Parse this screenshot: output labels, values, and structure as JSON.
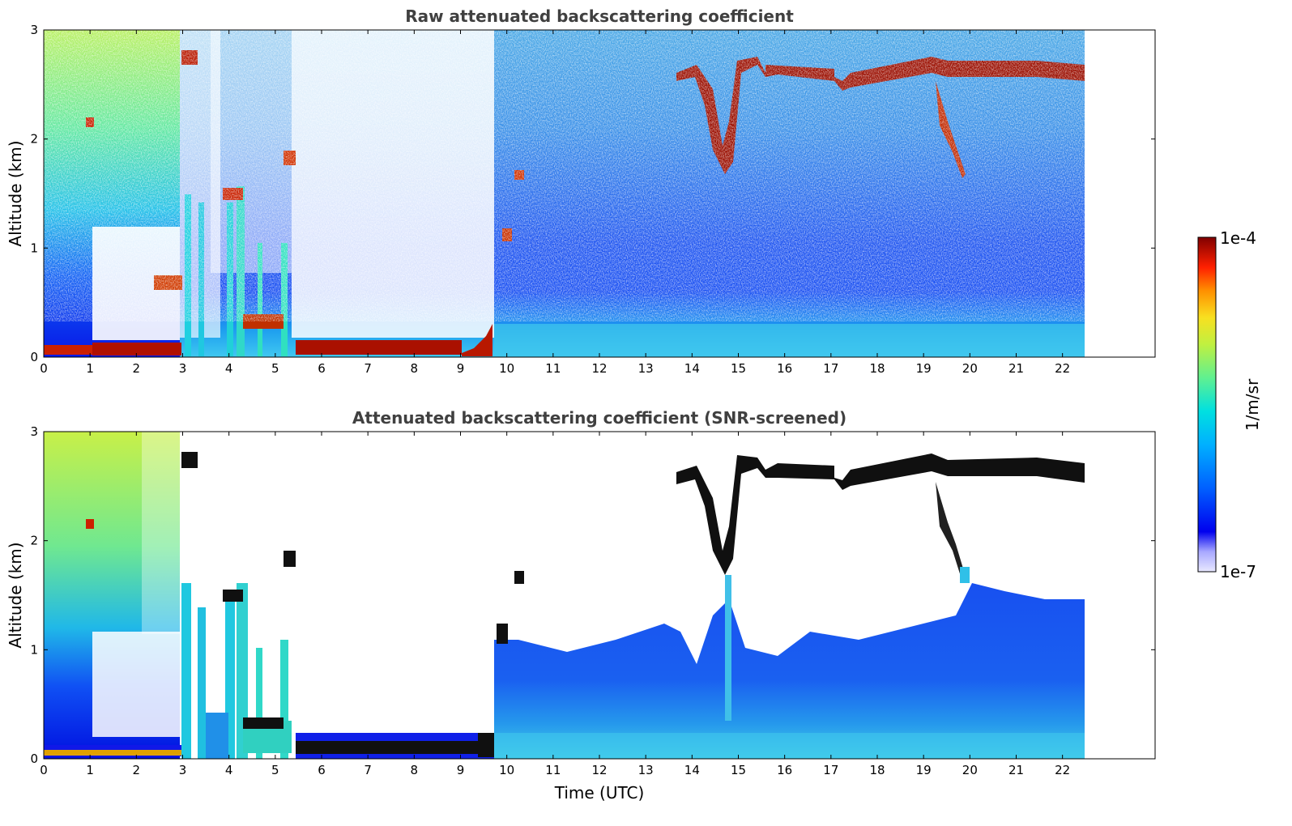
{
  "chart_data": [
    {
      "type": "heatmap",
      "title": "Raw attenuated backscattering coefficient",
      "xlabel": "",
      "ylabel": "Altitude (km)",
      "xlim": [
        0,
        24
      ],
      "ylim": [
        0,
        3
      ],
      "xticks": [
        0,
        1,
        2,
        3,
        4,
        5,
        6,
        7,
        8,
        9,
        10,
        11,
        12,
        13,
        14,
        15,
        16,
        17,
        18,
        19,
        20,
        21,
        22
      ],
      "yticks": [
        0,
        1,
        2,
        3
      ],
      "data_extent_hours": 22.45,
      "features": {
        "surface_layer_km": [
          0.0,
          0.08
        ],
        "low_cloud_base_km": 0.15,
        "high_cloud_layer_km": [
          2.45,
          2.8
        ],
        "high_cloud_hours": [
          13.7,
          22.45
        ],
        "descending_layer_hours": [
          [
            14.0,
            14.8
          ],
          [
            19.2,
            19.9
          ]
        ]
      }
    },
    {
      "type": "heatmap",
      "title": "Attenuated backscattering coefficient (SNR-screened)",
      "xlabel": "Time (UTC)",
      "ylabel": "Altitude (km)",
      "xlim": [
        0,
        24
      ],
      "ylim": [
        0,
        3
      ],
      "xticks": [
        0,
        1,
        2,
        3,
        4,
        5,
        6,
        7,
        8,
        9,
        10,
        11,
        12,
        13,
        14,
        15,
        16,
        17,
        18,
        19,
        20,
        21,
        22
      ],
      "yticks": [
        0,
        1,
        2,
        3
      ],
      "data_extent_hours": 22.45,
      "features": {
        "boundary_layer_top_km": 1.05,
        "high_cloud_layer_km": [
          2.45,
          2.8
        ]
      }
    }
  ],
  "colorbar": {
    "label": "1/m/sr",
    "max_label": "1e-4",
    "min_label": "1e-7",
    "colors": [
      "#e8e8ff",
      "#b0b0ff",
      "#4a4aff",
      "#0000ee",
      "#0040ff",
      "#0090ff",
      "#00c8f0",
      "#30e8c0",
      "#80f080",
      "#c8f040",
      "#f0e020",
      "#ffa000",
      "#ff4000",
      "#dd0000",
      "#800000"
    ]
  }
}
